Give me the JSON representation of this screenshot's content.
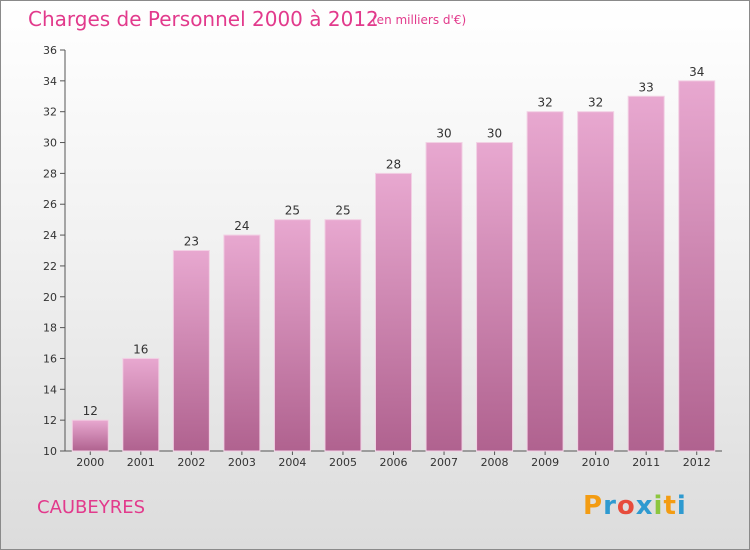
{
  "title": "Charges de Personnel 2000 à 2012",
  "unit_note": "(en milliers d'€)",
  "commune": "CAUBEYRES",
  "logo": {
    "text": "Proxiti",
    "letter_colors": [
      "#f39c12",
      "#2e9ad0",
      "#e74c3c",
      "#2e9ad0",
      "#8cc63f",
      "#f39c12",
      "#2e9ad0"
    ]
  },
  "colors": {
    "accent": "#e23a8c",
    "bar_top": "#e8a8d0",
    "bar_bottom": "#b0628f"
  },
  "chart_data": {
    "type": "bar",
    "title": "Charges de Personnel 2000 à 2012",
    "subtitle": "(en milliers d'€)",
    "xlabel": "",
    "ylabel": "",
    "categories": [
      "2000",
      "2001",
      "2002",
      "2003",
      "2004",
      "2005",
      "2006",
      "2007",
      "2008",
      "2009",
      "2010",
      "2011",
      "2012"
    ],
    "values": [
      12,
      16,
      23,
      24,
      25,
      25,
      28,
      30,
      30,
      32,
      32,
      33,
      34
    ],
    "ylim": [
      10,
      36
    ],
    "yticks": [
      10,
      12,
      14,
      16,
      18,
      20,
      22,
      24,
      26,
      28,
      30,
      32,
      34,
      36
    ],
    "grid": false,
    "legend": "none"
  }
}
